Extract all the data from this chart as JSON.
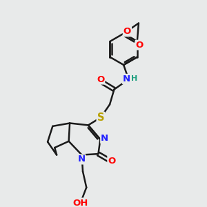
{
  "background_color": "#e8eaea",
  "bond_color": "#1a1a1a",
  "bond_width": 1.8,
  "atom_colors": {
    "O": "#ff0000",
    "N": "#2020ff",
    "S": "#b8a000",
    "H": "#20a080",
    "C": "#1a1a1a"
  },
  "font_size": 9.5,
  "font_size_h": 8.0
}
